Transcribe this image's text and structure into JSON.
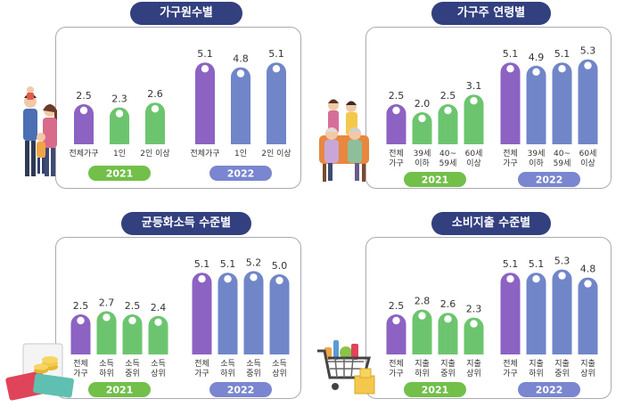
{
  "colors": {
    "title_bg": "#33407f",
    "purple": "#8c62c3",
    "green": "#6cc56e",
    "blue": "#7086c8",
    "pill_2021": "#72bf4a",
    "pill_2022": "#7a86cf"
  },
  "chart_data": [
    {
      "type": "bar",
      "title": "가구원수별",
      "groups": [
        {
          "name": "2021",
          "categories": [
            "전체가구",
            "1인",
            "2인 이상"
          ],
          "values": [
            2.5,
            2.3,
            2.6
          ]
        },
        {
          "name": "2022",
          "categories": [
            "전체가구",
            "1인",
            "2인 이상"
          ],
          "values": [
            5.1,
            4.8,
            5.1
          ]
        }
      ]
    },
    {
      "type": "bar",
      "title": "가구주 연령별",
      "groups": [
        {
          "name": "2021",
          "categories": [
            [
              "전체",
              "가구"
            ],
            [
              "39세",
              "이하"
            ],
            [
              "40~",
              "59세"
            ],
            [
              "60세",
              "이상"
            ]
          ],
          "values": [
            2.5,
            2.0,
            2.5,
            3.1
          ]
        },
        {
          "name": "2022",
          "categories": [
            [
              "전체",
              "가구"
            ],
            [
              "39세",
              "이하"
            ],
            [
              "40~",
              "59세"
            ],
            [
              "60세",
              "이상"
            ]
          ],
          "values": [
            5.1,
            4.9,
            5.1,
            5.3
          ]
        }
      ]
    },
    {
      "type": "bar",
      "title": "균등화소득 수준별",
      "groups": [
        {
          "name": "2021",
          "categories": [
            [
              "전체",
              "가구"
            ],
            [
              "소득",
              "하위"
            ],
            [
              "소득",
              "중위"
            ],
            [
              "소득",
              "상위"
            ]
          ],
          "values": [
            2.5,
            2.7,
            2.5,
            2.4
          ]
        },
        {
          "name": "2022",
          "categories": [
            [
              "전체",
              "가구"
            ],
            [
              "소득",
              "하위"
            ],
            [
              "소득",
              "중위"
            ],
            [
              "소득",
              "상위"
            ]
          ],
          "values": [
            5.1,
            5.1,
            5.2,
            5.0
          ]
        }
      ]
    },
    {
      "type": "bar",
      "title": "소비지출 수준별",
      "groups": [
        {
          "name": "2021",
          "categories": [
            [
              "전체",
              "가구"
            ],
            [
              "지출",
              "하위"
            ],
            [
              "지출",
              "중위"
            ],
            [
              "지출",
              "상위"
            ]
          ],
          "values": [
            2.5,
            2.8,
            2.6,
            2.3
          ]
        },
        {
          "name": "2022",
          "categories": [
            [
              "전체",
              "가구"
            ],
            [
              "지출",
              "하위"
            ],
            [
              "지출",
              "중위"
            ],
            [
              "지출",
              "상위"
            ]
          ],
          "values": [
            5.1,
            5.1,
            5.3,
            4.8
          ]
        }
      ]
    }
  ]
}
